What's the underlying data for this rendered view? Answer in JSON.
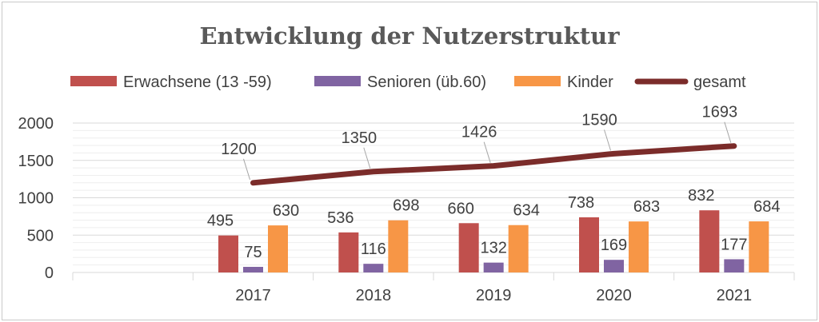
{
  "chart_data": {
    "type": "bar",
    "title": "Entwicklung der Nutzerstruktur",
    "categories": [
      "",
      "2017",
      "2018",
      "2019",
      "2020",
      "2021"
    ],
    "ylim": [
      0,
      2000
    ],
    "yticks": [
      "0",
      "500",
      "1000",
      "1500",
      "2000"
    ],
    "grid": true,
    "legend_position": "top",
    "series": [
      {
        "name": "Erwachsene (13 -59)",
        "type": "bar",
        "color": "#c0504d",
        "values": [
          null,
          495,
          536,
          660,
          738,
          832
        ]
      },
      {
        "name": "Senioren (üb.60)",
        "type": "bar",
        "color": "#8064a2",
        "values": [
          null,
          75,
          116,
          132,
          169,
          177
        ]
      },
      {
        "name": "Kinder",
        "type": "bar",
        "color": "#f79646",
        "values": [
          null,
          630,
          698,
          634,
          683,
          684
        ]
      },
      {
        "name": "gesamt",
        "type": "line",
        "color": "#7b2c2a",
        "values": [
          null,
          1200,
          1350,
          1426,
          1590,
          1693
        ]
      }
    ]
  }
}
